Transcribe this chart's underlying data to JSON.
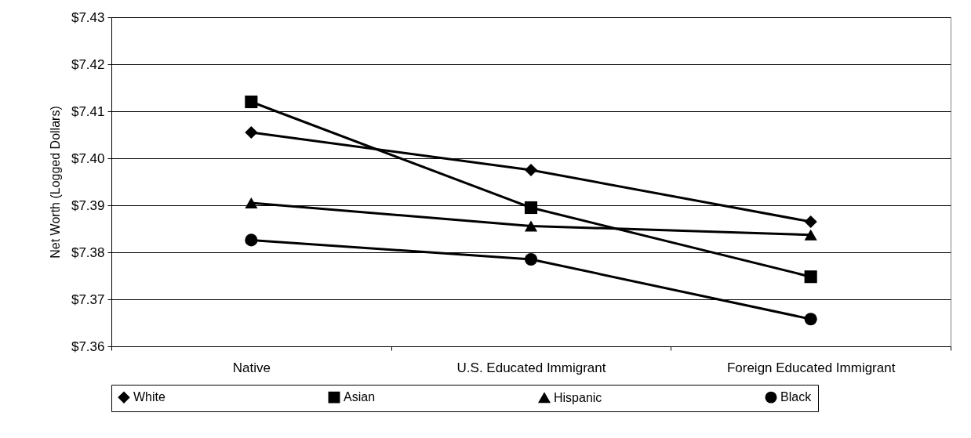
{
  "chart_data": {
    "type": "line",
    "ylabel": "Net Worth (Logged Dollars)",
    "categories": [
      "Native",
      "U.S. Educated Immigrant",
      "Foreign Educated Immigrant"
    ],
    "series": [
      {
        "name": "White",
        "color": "#000000",
        "marker": "diamond",
        "values": [
          7.4055,
          7.3975,
          7.3865
        ]
      },
      {
        "name": "Asian",
        "color": "#000000",
        "marker": "square",
        "values": [
          7.412,
          7.3895,
          7.3748
        ]
      },
      {
        "name": "Hispanic",
        "color": "#000000",
        "marker": "triangle",
        "values": [
          7.3905,
          7.3856,
          7.3837
        ]
      },
      {
        "name": "Black",
        "color": "#000000",
        "marker": "circle",
        "values": [
          7.3826,
          7.3785,
          7.3658
        ]
      }
    ],
    "ylim": [
      7.36,
      7.43
    ],
    "yticks": [
      {
        "value": 7.36,
        "label": "$7.36"
      },
      {
        "value": 7.37,
        "label": "$7.37"
      },
      {
        "value": 7.38,
        "label": "$7.38"
      },
      {
        "value": 7.39,
        "label": "$7.39"
      },
      {
        "value": 7.4,
        "label": "$7.40"
      },
      {
        "value": 7.41,
        "label": "$7.41"
      },
      {
        "value": 7.42,
        "label": "$7.42"
      },
      {
        "value": 7.43,
        "label": "$7.43"
      }
    ],
    "grid": "y",
    "legend": "bottom",
    "line_style": "solid"
  }
}
